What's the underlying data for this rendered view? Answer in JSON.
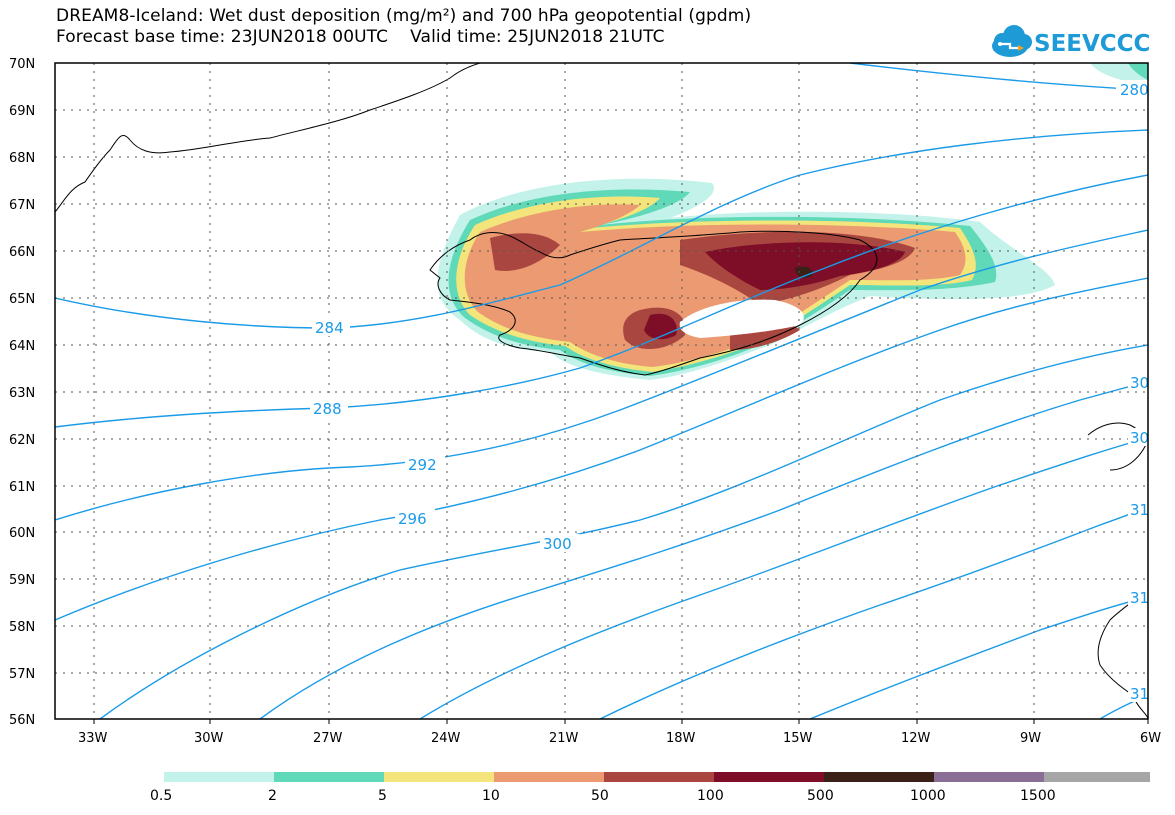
{
  "header": {
    "title_line1": "DREAM8-Iceland: Wet dust deposition (mg/m²) and 700 hPa geopotential (gpdm)",
    "forecast_label": "Forecast base time: 23JUN2018 00UTC",
    "valid_label": "Valid time: 25JUN2018 21UTC"
  },
  "logo": {
    "text": "SEEVCCC",
    "icon": "cloud-icon",
    "color": "#1e9bd7"
  },
  "map": {
    "lat_labels": [
      "70N",
      "69N",
      "68N",
      "67N",
      "66N",
      "65N",
      "64N",
      "63N",
      "62N",
      "61N",
      "60N",
      "59N",
      "58N",
      "57N",
      "56N"
    ],
    "lon_labels": [
      "33W",
      "30W",
      "27W",
      "24W",
      "21W",
      "18W",
      "15W",
      "12W",
      "9W",
      "6W"
    ],
    "contour_color": "#1a9be8",
    "contour_labels": [
      "280",
      "284",
      "288",
      "292",
      "296",
      "300",
      "30",
      "30",
      "31",
      "31",
      "31"
    ]
  },
  "colorbar": {
    "colors": [
      "#c3f2ea",
      "#5fd9b7",
      "#f3e57b",
      "#eb9a72",
      "#a9463f",
      "#7e0d27",
      "#3b2018",
      "#8a6e96",
      "#a6a6a6"
    ],
    "labels": [
      "0.5",
      "2",
      "5",
      "10",
      "50",
      "100",
      "500",
      "1000",
      "1500"
    ]
  }
}
